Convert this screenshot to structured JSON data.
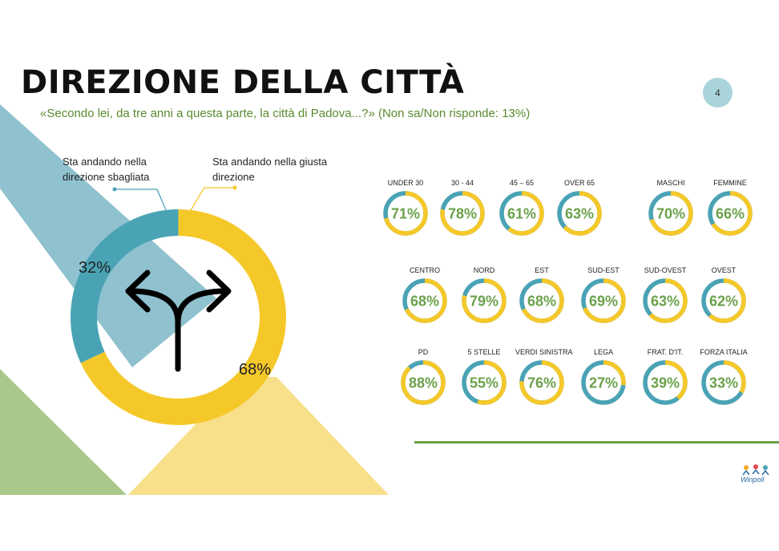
{
  "title": "DIREZIONE DELLA CITTÀ",
  "subtitle": "«Secondo lei, da tre anni a questa parte, la città di Padova...?» (Non sa/Non risponde:  13%)",
  "page_number": "4",
  "colors": {
    "teal": "#4aa3b5",
    "yellow": "#f5c82a",
    "light_teal": "#8fc1ce",
    "green": "#6aa14a",
    "light_green": "#a9c98a",
    "light_yellow": "#f8e08a"
  },
  "icons": {
    "arrows": "fork-arrows-icon",
    "logo": "winpoll-logo"
  },
  "chart_data": [
    {
      "type": "pie",
      "title": "",
      "labels": [
        "Sta andando nella direzione sbagliata",
        "Sta andando nella giusta direzione"
      ],
      "label_lines": [
        [
          "Sta andando nella",
          "direzione sbagliata"
        ],
        [
          "Sta andando nella giusta",
          "direzione"
        ]
      ],
      "values": [
        32,
        68
      ],
      "value_labels": [
        "32%",
        "68%"
      ],
      "colors": [
        "#4aa3b5",
        "#f5c82a"
      ]
    },
    {
      "type": "pie",
      "title": "",
      "groups": [
        {
          "items": [
            {
              "label": "UNDER 30",
              "value": 71,
              "text": "71%"
            },
            {
              "label": "30 - 44",
              "value": 78,
              "text": "78%"
            },
            {
              "label": "45 – 65",
              "value": 61,
              "text": "61%"
            },
            {
              "label": "OVER 65",
              "value": 63,
              "text": "63%"
            },
            {
              "label": "MASCHI",
              "value": 70,
              "text": "70%"
            },
            {
              "label": "FEMMINE",
              "value": 66,
              "text": "66%"
            }
          ]
        },
        {
          "items": [
            {
              "label": "CENTRO",
              "value": 68,
              "text": "68%"
            },
            {
              "label": "NORD",
              "value": 79,
              "text": "79%"
            },
            {
              "label": "EST",
              "value": 68,
              "text": "68%"
            },
            {
              "label": "SUD-EST",
              "value": 69,
              "text": "69%"
            },
            {
              "label": "SUD-OVEST",
              "value": 63,
              "text": "63%"
            },
            {
              "label": "OVEST",
              "value": 62,
              "text": "62%"
            }
          ]
        },
        {
          "items": [
            {
              "label": "PD",
              "value": 88,
              "text": "88%"
            },
            {
              "label": "5 STELLE",
              "value": 55,
              "text": "55%"
            },
            {
              "label": "VERDI SINISTRA",
              "value": 76,
              "text": "76%"
            },
            {
              "label": "LEGA",
              "value": 27,
              "text": "27%"
            },
            {
              "label": "FRAT. D'IT.",
              "value": 39,
              "text": "39%"
            },
            {
              "label": "FORZA ITALIA",
              "value": 33,
              "text": "33%"
            }
          ]
        }
      ],
      "colors": [
        "#f5c82a",
        "#4aa3b5"
      ]
    }
  ],
  "logo_text": "Winpoll"
}
